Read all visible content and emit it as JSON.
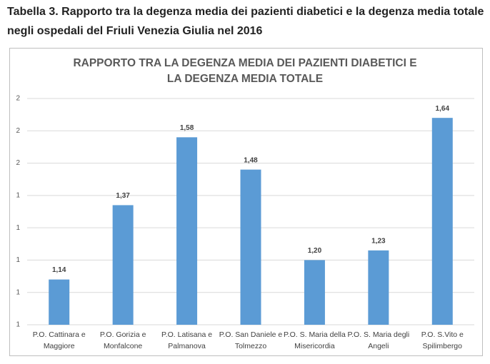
{
  "caption": "Tabella 3.  Rapporto tra  la degenza media dei  pazienti diabetici e la degenza  media totale negli ospedali del Friuli Venezia Giulia nel 2016",
  "chart_data": {
    "type": "bar",
    "title": "RAPPORTO TRA LA DEGENZA MEDIA DEI PAZIENTI DIABETICI E LA DEGENZA MEDIA TOTALE",
    "categories": [
      "P.O. Cattinara e Maggiore",
      "P.O. Gorizia e Monfalcone",
      "P.O. Latisana e Palmanova",
      "P.O. San Daniele e Tolmezzo",
      "P.O. S. Maria della Misericordia",
      "P.O. S. Maria degli Angeli",
      "P.O. S.Vito e Spilimbergo"
    ],
    "values": [
      1.14,
      1.37,
      1.58,
      1.48,
      1.2,
      1.23,
      1.64
    ],
    "value_labels": [
      "1,14",
      "1,37",
      "1,58",
      "1,48",
      "1,20",
      "1,23",
      "1,64"
    ],
    "color": "#5b9bd5",
    "ylim": [
      1,
      1.7
    ],
    "yticks": [
      {
        "value": 1.0,
        "label": "1"
      },
      {
        "value": 1.1,
        "label": "1"
      },
      {
        "value": 1.2,
        "label": "1"
      },
      {
        "value": 1.3,
        "label": "1"
      },
      {
        "value": 1.4,
        "label": "1"
      },
      {
        "value": 1.5,
        "label": "2"
      },
      {
        "value": 1.6,
        "label": "2"
      },
      {
        "value": 1.7,
        "label": "2"
      }
    ],
    "grid": true
  }
}
